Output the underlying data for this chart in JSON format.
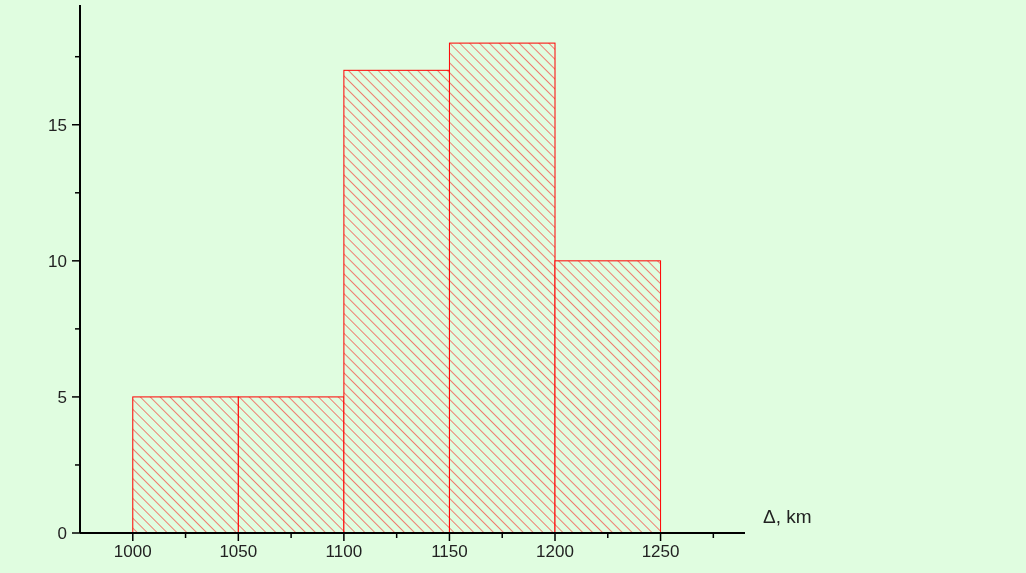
{
  "chart_data": {
    "type": "histogram",
    "xlabel": "Δ, km",
    "color": "#ff0000",
    "bins": [
      1000,
      1050,
      1100,
      1150,
      1200,
      1250
    ],
    "values": [
      5,
      5,
      17,
      18,
      10
    ],
    "xlim": [
      975,
      1290
    ],
    "xticks": [
      1000,
      {
        "value": 1025,
        "label": null
      },
      1050,
      {
        "value": 1075,
        "label": null
      },
      1100,
      {
        "value": 1125,
        "label": null
      },
      1150,
      {
        "value": 1175,
        "label": null
      },
      1200,
      {
        "value": 1225,
        "label": null
      },
      1250,
      {
        "value": 1275,
        "label": null
      }
    ],
    "ylim": [
      0,
      19.4
    ],
    "yticks": [
      0,
      {
        "value": 2.5,
        "label": null
      },
      5,
      {
        "value": 7.5,
        "label": null
      },
      10,
      {
        "value": 12.5,
        "label": null
      },
      15,
      {
        "value": 17.5,
        "label": null
      }
    ],
    "grid": false
  }
}
